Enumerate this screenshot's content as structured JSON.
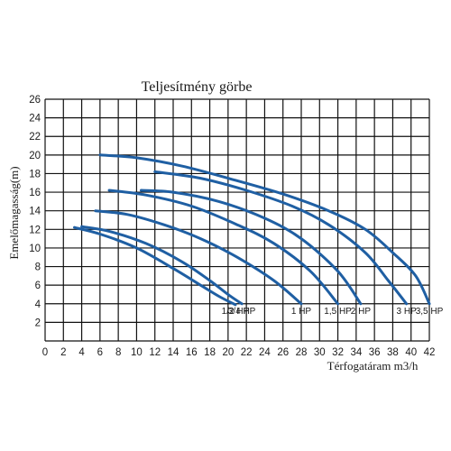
{
  "chart_data": {
    "type": "line",
    "title": "Teljesítmény görbe",
    "xlabel": "Térfogatáram m3/h",
    "ylabel": "Emelőmagasság(m)",
    "xlim": [
      0,
      42
    ],
    "ylim": [
      0,
      26
    ],
    "x_ticks": [
      0,
      2,
      4,
      6,
      8,
      10,
      12,
      14,
      16,
      18,
      20,
      22,
      24,
      26,
      28,
      30,
      32,
      34,
      36,
      38,
      40,
      42
    ],
    "y_ticks": [
      2,
      4,
      6,
      8,
      10,
      12,
      14,
      16,
      18,
      20,
      22,
      24,
      26
    ],
    "grid": true,
    "series_color": "#1f5fa3",
    "series": [
      {
        "label": "1/2 HP",
        "x": [
          3.2,
          6,
          10,
          14,
          17,
          19,
          20.8
        ],
        "y": [
          12.2,
          11.5,
          10,
          7.8,
          6,
          4.8,
          3.9
        ]
      },
      {
        "label": "3/4 HP",
        "x": [
          4,
          7,
          11,
          15,
          18,
          20,
          21.5
        ],
        "y": [
          12.3,
          11.8,
          10.5,
          8.5,
          6.5,
          5,
          4
        ]
      },
      {
        "label": "1 HP",
        "x": [
          5.5,
          9,
          13,
          17,
          21,
          25,
          28
        ],
        "y": [
          14,
          13.6,
          12.5,
          11,
          9,
          6.5,
          4
        ]
      },
      {
        "label": "1,5 HP",
        "x": [
          7,
          11,
          16,
          21,
          25,
          29,
          32
        ],
        "y": [
          16.2,
          15.7,
          14.5,
          12.5,
          10.5,
          7.5,
          4
        ]
      },
      {
        "label": "2 HP",
        "x": [
          10.5,
          14,
          19,
          24,
          28,
          32,
          34.5
        ],
        "y": [
          16.2,
          16,
          15,
          13.2,
          11,
          7.5,
          4
        ]
      },
      {
        "label": "3 HP",
        "x": [
          12,
          17,
          22,
          27,
          31,
          35,
          37.5,
          39.5
        ],
        "y": [
          18.2,
          17.5,
          16.2,
          14.5,
          12.5,
          9.5,
          6.5,
          4
        ]
      },
      {
        "label": "3,5 HP",
        "x": [
          6,
          10,
          15,
          20,
          26,
          31,
          35,
          38,
          40.5,
          42
        ],
        "y": [
          20,
          19.7,
          18.8,
          17.5,
          15.8,
          14,
          12,
          9.5,
          7,
          4
        ]
      }
    ]
  }
}
